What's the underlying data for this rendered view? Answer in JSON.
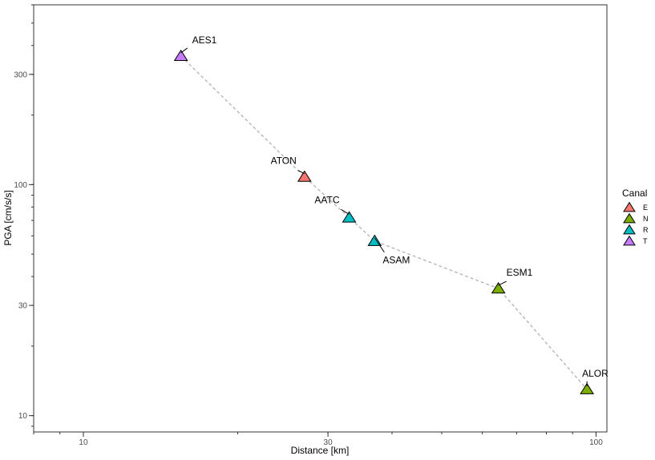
{
  "chart_data": {
    "type": "scatter",
    "xlabel": "Distance [km]",
    "ylabel": "PGA [cm/s/s]",
    "x_scale": "log",
    "y_scale": "log",
    "xlim": [
      8,
      105
    ],
    "ylim": [
      8.5,
      600
    ],
    "x_ticks": [
      10,
      30,
      100
    ],
    "x_tick_labels": [
      "10",
      "30",
      "100"
    ],
    "y_ticks": [
      10,
      30,
      100,
      300
    ],
    "y_tick_labels": [
      "10",
      "30",
      "100",
      "300"
    ],
    "grid": false,
    "connect_points": true,
    "line_color": "#b3b3b3",
    "legend": {
      "title": "Canal",
      "position": "right",
      "entries": [
        {
          "label": "E",
          "color": "#f8766d"
        },
        {
          "label": "N",
          "color": "#7cae00"
        },
        {
          "label": "R",
          "color": "#00bfc4"
        },
        {
          "label": "T",
          "color": "#c77cff"
        }
      ]
    },
    "points": [
      {
        "label": "AES1",
        "x": 15.5,
        "y": 360,
        "canal": "T"
      },
      {
        "label": "ATON",
        "x": 27.0,
        "y": 108,
        "canal": "E"
      },
      {
        "label": "AATC",
        "x": 33.0,
        "y": 72,
        "canal": "R"
      },
      {
        "label": "ASAM",
        "x": 37.0,
        "y": 57,
        "canal": "R"
      },
      {
        "label": "ESM1",
        "x": 64.5,
        "y": 35.5,
        "canal": "N"
      },
      {
        "label": "ALOR",
        "x": 96.0,
        "y": 13.0,
        "canal": "N"
      }
    ]
  }
}
